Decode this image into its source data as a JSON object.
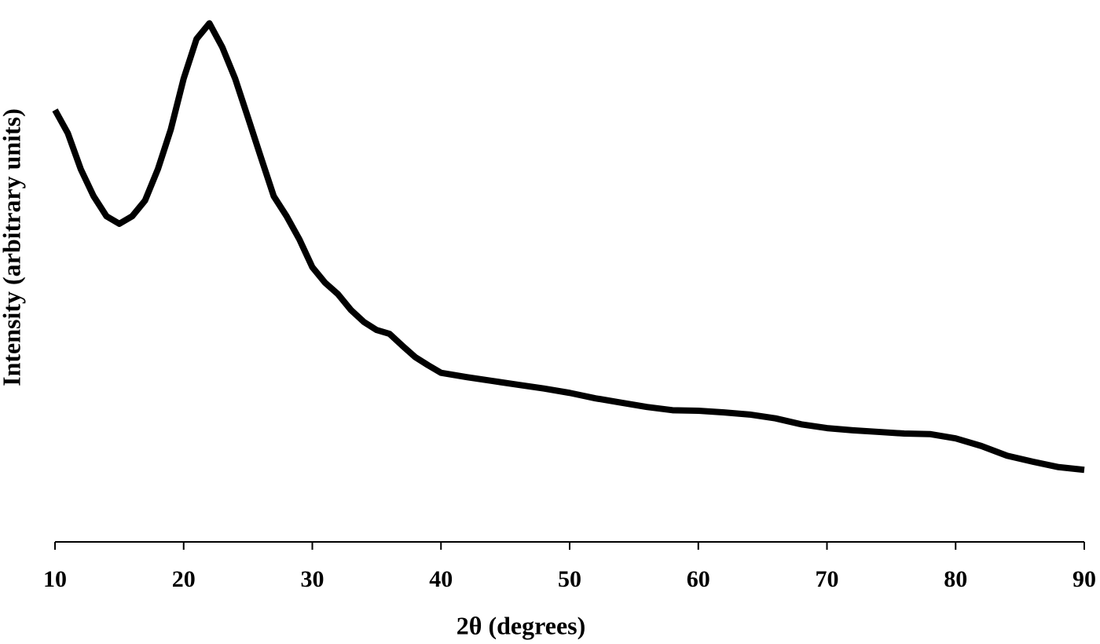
{
  "chart_data": {
    "type": "line",
    "x_label": "2θ (degrees)",
    "y_label": "Intensity (arbitrary units)",
    "x": [
      10,
      11,
      12,
      13,
      14,
      15,
      16,
      17,
      18,
      19,
      20,
      21,
      22,
      23,
      24,
      25,
      26,
      27,
      28,
      29,
      30,
      31,
      32,
      33,
      34,
      35,
      36,
      37,
      38,
      39,
      40,
      42,
      44,
      46,
      48,
      50,
      52,
      54,
      56,
      58,
      60,
      62,
      64,
      66,
      68,
      70,
      72,
      74,
      76,
      78,
      80,
      82,
      84,
      86,
      88,
      90
    ],
    "series": [
      {
        "color": "#000000",
        "values": [
          79.7,
          75.4,
          68.8,
          63.8,
          60.1,
          58.7,
          60.1,
          63.0,
          68.8,
          76.1,
          85.5,
          92.8,
          95.7,
          91.3,
          85.5,
          78.3,
          71.0,
          63.8,
          60.1,
          55.8,
          50.7,
          47.8,
          45.7,
          42.8,
          40.6,
          39.1,
          38.4,
          36.2,
          34.1,
          32.6,
          31.2,
          30.4,
          29.7,
          29.0,
          28.3,
          27.5,
          26.5,
          25.7,
          24.9,
          24.3,
          24.2,
          23.9,
          23.5,
          22.8,
          21.7,
          21.0,
          20.6,
          20.3,
          20.0,
          19.9,
          19.1,
          17.7,
          15.9,
          14.8,
          13.8,
          13.3
        ]
      }
    ],
    "xlim": [
      10,
      90
    ],
    "xticks": [
      10,
      20,
      30,
      40,
      50,
      60,
      70,
      80,
      90
    ],
    "ylim": [
      0,
      100
    ],
    "grid": false
  }
}
